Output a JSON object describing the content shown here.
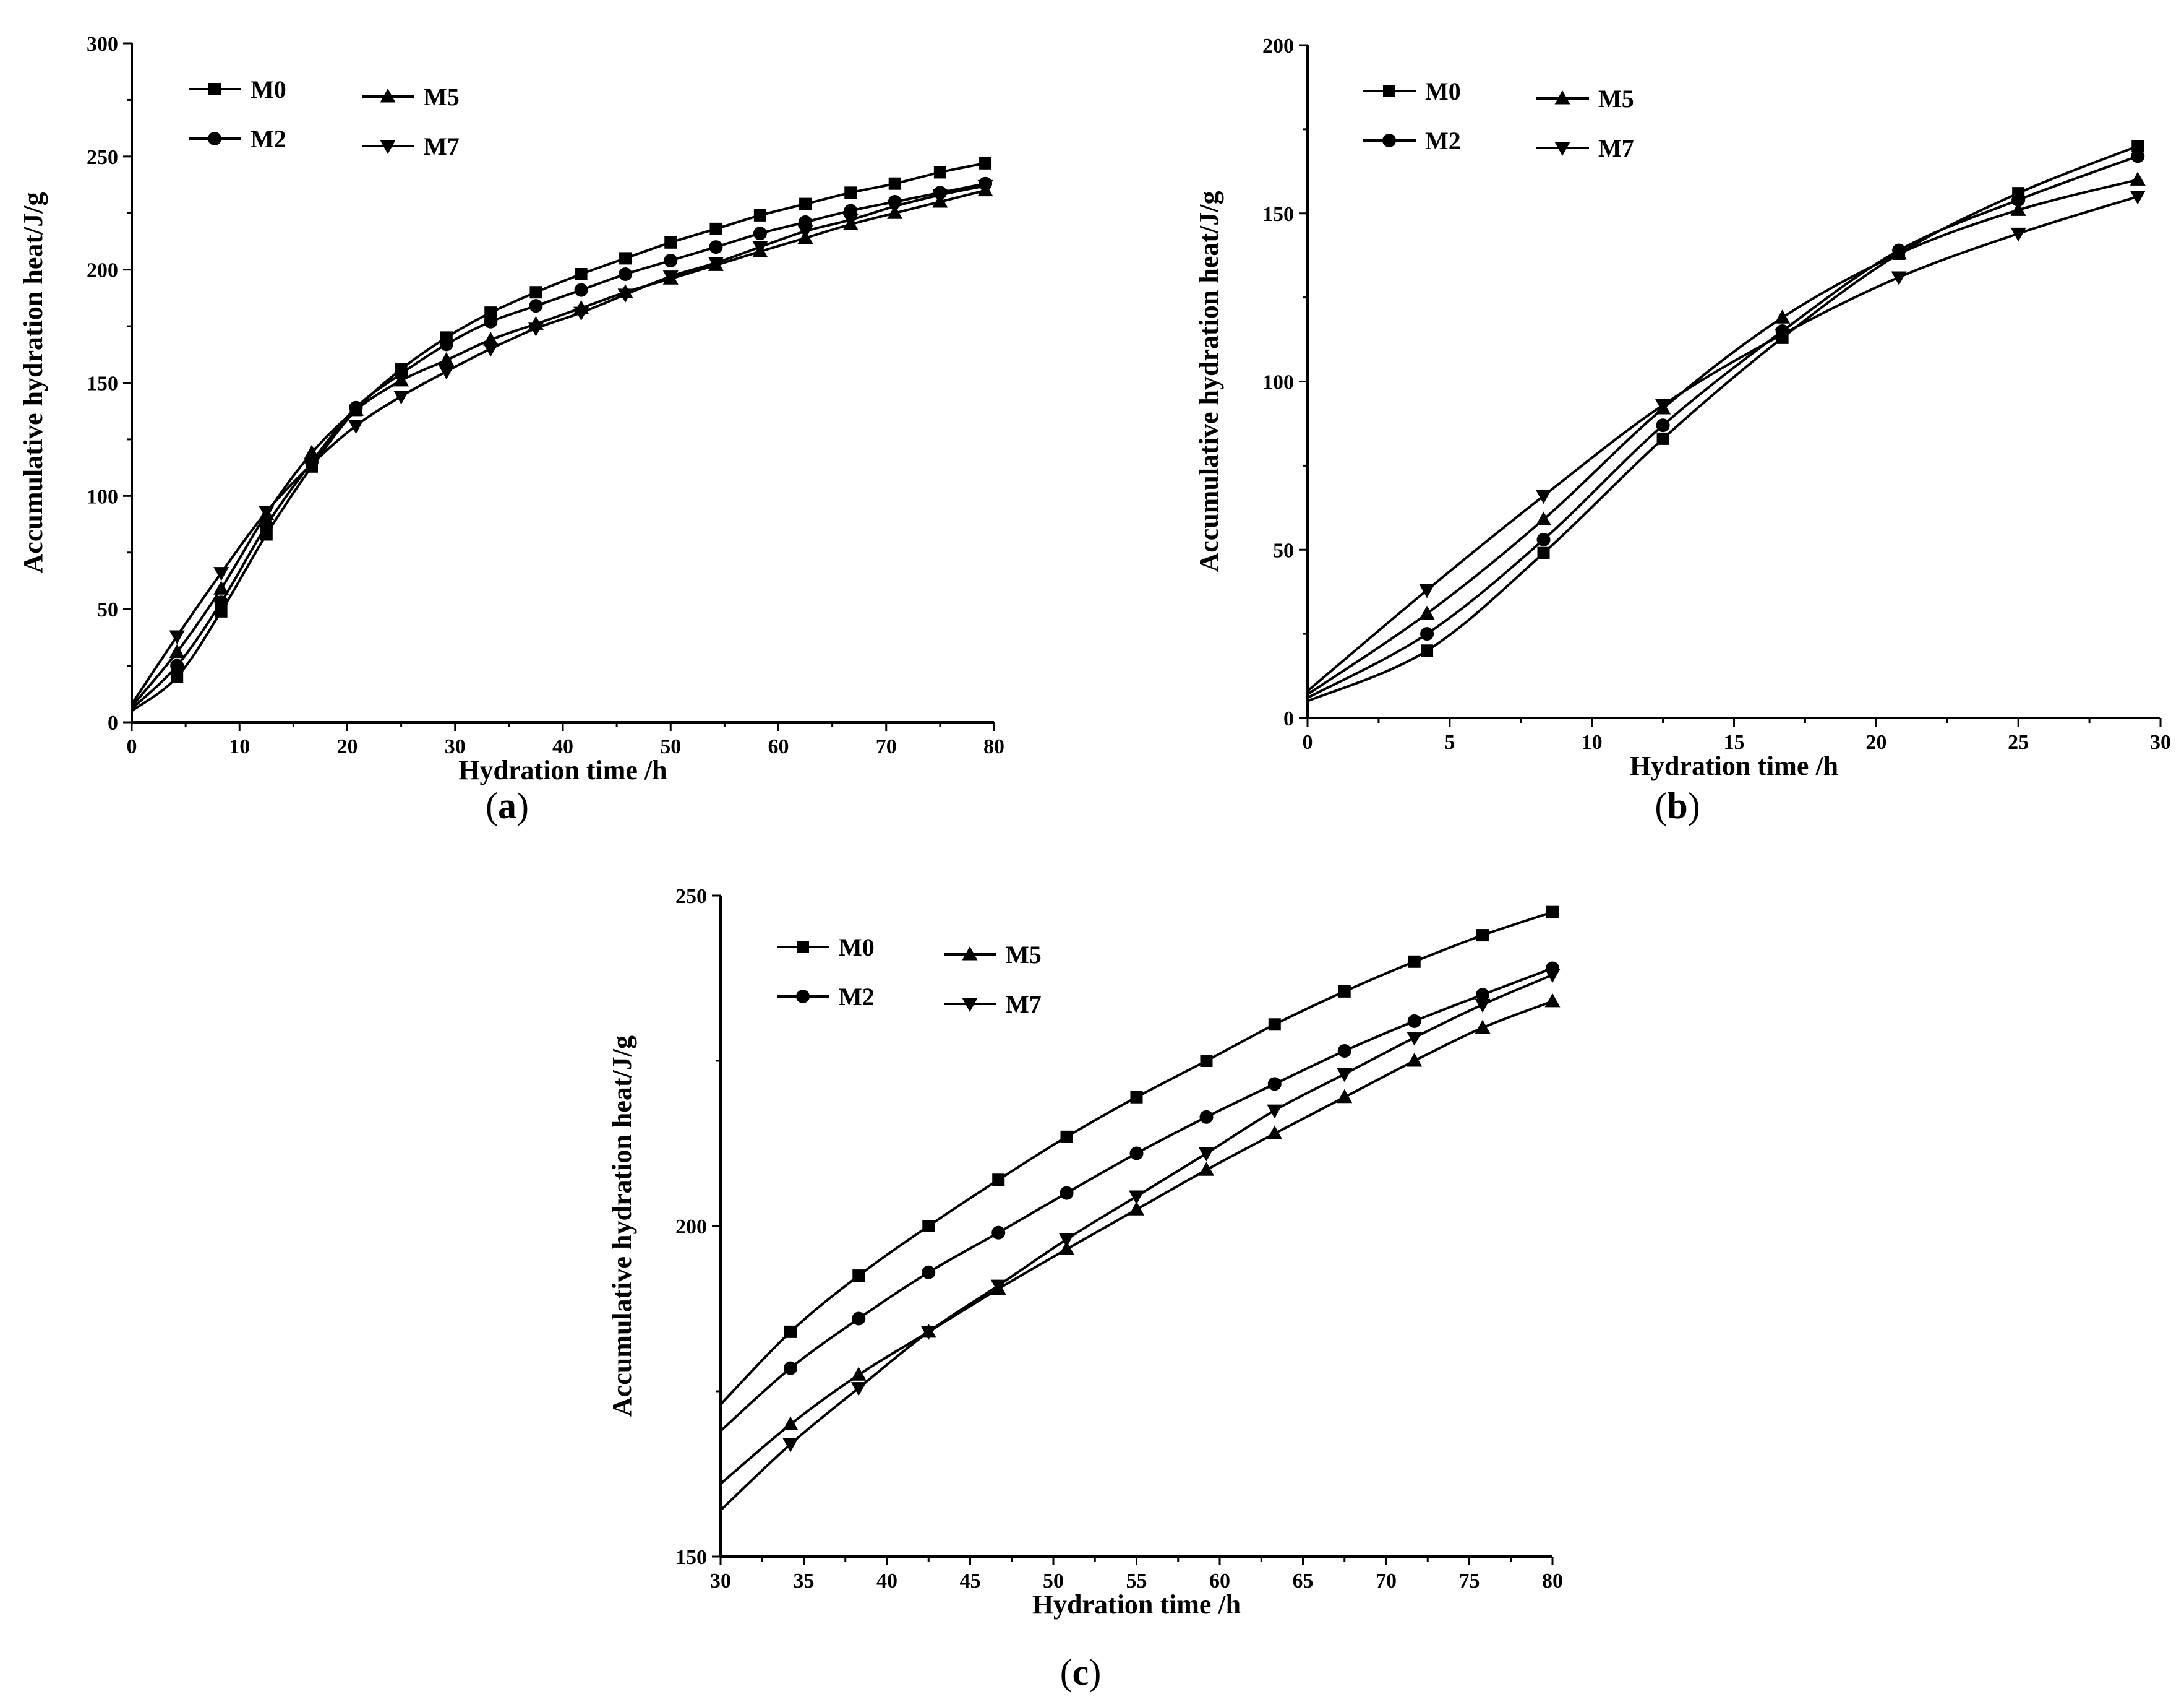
{
  "figure": {
    "panels": [
      {
        "key": "a",
        "label_prefix": "(",
        "label_letter": "a",
        "label_suffix": ")"
      },
      {
        "key": "b",
        "label_prefix": "(",
        "label_letter": "b",
        "label_suffix": ")"
      },
      {
        "key": "c",
        "label_prefix": "(",
        "label_letter": "c",
        "label_suffix": ")"
      }
    ]
  },
  "chart_data": [
    {
      "id": "a",
      "type": "line",
      "xlabel": "Hydration time /h",
      "ylabel": "Accumulative hydration heat/J/g",
      "xlim": [
        0,
        80
      ],
      "ylim": [
        0,
        300
      ],
      "xticks": [
        0,
        10,
        20,
        30,
        40,
        50,
        60,
        70,
        80
      ],
      "yticks": [
        0,
        50,
        100,
        150,
        200,
        250,
        300
      ],
      "legend": [
        "M0",
        "M5",
        "M2",
        "M7"
      ],
      "series": [
        {
          "name": "M0",
          "marker": "square",
          "x": [
            0,
            4.2,
            8.3,
            12.5,
            16.7,
            20.8,
            25,
            29.2,
            33.3,
            37.5,
            41.7,
            45.8,
            50,
            54.2,
            58.3,
            62.5,
            66.7,
            70.8,
            75,
            79.2
          ],
          "y": [
            5,
            20,
            49,
            83,
            113,
            138,
            156,
            170,
            181,
            190,
            198,
            205,
            212,
            218,
            224,
            229,
            234,
            238,
            243,
            247
          ]
        },
        {
          "name": "M2",
          "marker": "circle",
          "x": [
            0,
            4.2,
            8.3,
            12.5,
            16.7,
            20.8,
            25,
            29.2,
            33.3,
            37.5,
            41.7,
            45.8,
            50,
            54.2,
            58.3,
            62.5,
            66.7,
            70.8,
            75,
            79.2
          ],
          "y": [
            6,
            25,
            53,
            87,
            115,
            139,
            154,
            167,
            177,
            184,
            191,
            198,
            204,
            210,
            216,
            221,
            226,
            230,
            234,
            238
          ]
        },
        {
          "name": "M5",
          "marker": "triangle-up",
          "x": [
            0,
            4.2,
            8.3,
            12.5,
            16.7,
            20.8,
            25,
            29.2,
            33.3,
            37.5,
            41.7,
            45.8,
            50,
            54.2,
            58.3,
            62.5,
            66.7,
            70.8,
            75,
            79.2
          ],
          "y": [
            7,
            31,
            59,
            92,
            119,
            138,
            151,
            160,
            169,
            176,
            183,
            190,
            196,
            202,
            208,
            214,
            220,
            225,
            230,
            235
          ]
        },
        {
          "name": "M7",
          "marker": "triangle-down",
          "x": [
            0,
            4.2,
            8.3,
            12.5,
            16.7,
            20.8,
            25,
            29.2,
            33.3,
            37.5,
            41.7,
            45.8,
            50,
            54.2,
            58.3,
            62.5,
            66.7,
            70.8,
            75,
            79.2
          ],
          "y": [
            8,
            38,
            66,
            93,
            114,
            131,
            144,
            155,
            165,
            174,
            181,
            189,
            197,
            203,
            210,
            217,
            222,
            228,
            233,
            237
          ]
        }
      ]
    },
    {
      "id": "b",
      "type": "line",
      "xlabel": "Hydration time /h",
      "ylabel": "Accumulative hydration heat/J/g",
      "xlim": [
        0,
        30
      ],
      "ylim": [
        0,
        200
      ],
      "xticks": [
        0,
        5,
        10,
        15,
        20,
        25,
        30
      ],
      "yticks": [
        0,
        50,
        100,
        150,
        200
      ],
      "legend": [
        "M0",
        "M5",
        "M2",
        "M7"
      ],
      "series": [
        {
          "name": "M0",
          "marker": "square",
          "x": [
            0,
            4.2,
            8.3,
            12.5,
            16.7,
            20.8,
            25,
            29.2
          ],
          "y": [
            5,
            20,
            49,
            83,
            113,
            138,
            156,
            170
          ]
        },
        {
          "name": "M2",
          "marker": "circle",
          "x": [
            0,
            4.2,
            8.3,
            12.5,
            16.7,
            20.8,
            25,
            29.2
          ],
          "y": [
            6,
            25,
            53,
            87,
            115,
            139,
            154,
            167
          ]
        },
        {
          "name": "M5",
          "marker": "triangle-up",
          "x": [
            0,
            4.2,
            8.3,
            12.5,
            16.7,
            20.8,
            25,
            29.2
          ],
          "y": [
            7,
            31,
            59,
            92,
            119,
            138,
            151,
            160
          ]
        },
        {
          "name": "M7",
          "marker": "triangle-down",
          "x": [
            0,
            4.2,
            8.3,
            12.5,
            16.7,
            20.8,
            25,
            29.2
          ],
          "y": [
            8,
            38,
            66,
            93,
            114,
            131,
            144,
            155
          ]
        }
      ]
    },
    {
      "id": "c",
      "type": "line",
      "xlabel": "Hydration time /h",
      "ylabel": "Accumulative hydration heat/J/g",
      "xlim": [
        30,
        80
      ],
      "ylim": [
        150,
        250
      ],
      "xticks": [
        30,
        35,
        40,
        45,
        50,
        55,
        60,
        65,
        70,
        75,
        80
      ],
      "yticks": [
        150,
        200,
        250
      ],
      "legend": [
        "M0",
        "M5",
        "M2",
        "M7"
      ],
      "series": [
        {
          "name": "M0",
          "marker": "square",
          "x": [
            30,
            34.2,
            38.3,
            42.5,
            46.7,
            50.8,
            55,
            59.2,
            63.3,
            67.5,
            71.7,
            75.8,
            80
          ],
          "y": [
            173,
            184,
            192.5,
            200,
            207,
            213.5,
            219.5,
            225,
            230.5,
            235.5,
            240,
            244,
            247.5
          ]
        },
        {
          "name": "M2",
          "marker": "circle",
          "x": [
            30,
            34.2,
            38.3,
            42.5,
            46.7,
            50.8,
            55,
            59.2,
            63.3,
            67.5,
            71.7,
            75.8,
            80
          ],
          "y": [
            169,
            178.5,
            186,
            193,
            199,
            205,
            211,
            216.5,
            221.5,
            226.5,
            231,
            235,
            239
          ]
        },
        {
          "name": "M5",
          "marker": "triangle-up",
          "x": [
            30,
            34.2,
            38.3,
            42.5,
            46.7,
            50.8,
            55,
            59.2,
            63.3,
            67.5,
            71.7,
            75.8,
            80
          ],
          "y": [
            161,
            170,
            177.5,
            184,
            190.5,
            196.5,
            202.5,
            208.5,
            214,
            219.5,
            225,
            230,
            234
          ]
        },
        {
          "name": "M7",
          "marker": "triangle-down",
          "x": [
            30,
            34.2,
            38.3,
            42.5,
            46.7,
            50.8,
            55,
            59.2,
            63.3,
            67.5,
            71.7,
            75.8,
            80
          ],
          "y": [
            157,
            167,
            175.5,
            184,
            191,
            198,
            204.5,
            211,
            217.5,
            223,
            228.5,
            233.5,
            238
          ]
        }
      ]
    }
  ]
}
